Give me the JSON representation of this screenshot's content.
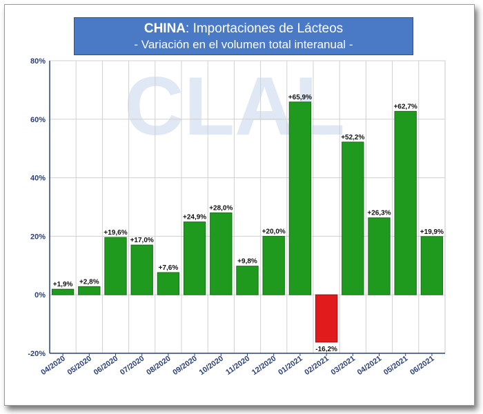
{
  "title": {
    "country": "CHINA",
    "main": "Importaciones de Lácteos",
    "subtitle": "- Variación en el volumen total interanual -"
  },
  "watermark": "CLAL",
  "colors": {
    "positive": "#1f9a1f",
    "positive_stroke": "#157015",
    "negative": "#e11b1b",
    "negative_stroke": "#9b0f0f",
    "axis_text": "#2b3f7a",
    "title_bg": "#4a7ac6",
    "watermark": "#dfe8f4"
  },
  "chart_data": {
    "type": "bar",
    "categories": [
      "04/2020",
      "05/2020",
      "06/2020",
      "07/2020",
      "08/2020",
      "09/2020",
      "10/2020",
      "11/2020",
      "12/2020",
      "01/2021",
      "02/2021",
      "03/2021",
      "04/2021",
      "05/2021",
      "06/2021"
    ],
    "values": [
      1.9,
      2.8,
      19.6,
      17.0,
      7.6,
      24.9,
      28.0,
      9.8,
      20.0,
      65.9,
      -16.2,
      52.2,
      26.3,
      62.7,
      19.9
    ],
    "labels": [
      "+1,9%",
      "+2,8%",
      "+19,6%",
      "+17,0%",
      "+7,6%",
      "+24,9%",
      "+28,0%",
      "+9,8%",
      "+20,0%",
      "+65,9%",
      "-16,2%",
      "+52,2%",
      "+26,3%",
      "+62,7%",
      "+19,9%"
    ],
    "ylim": [
      -20,
      80
    ],
    "yticks": [
      -20,
      0,
      20,
      40,
      60,
      80
    ],
    "ytick_labels": [
      "-20%",
      "0%",
      "20%",
      "40%",
      "60%",
      "80%"
    ],
    "grid": true,
    "xlabel": "",
    "ylabel": ""
  }
}
